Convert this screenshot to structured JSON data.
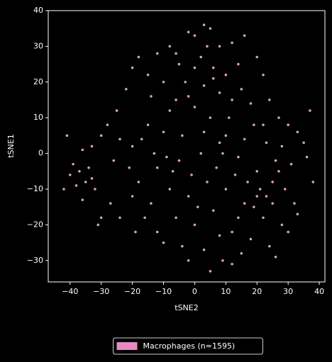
{
  "chart_data": {
    "type": "scatter",
    "xlabel": "tSNE2",
    "ylabel": "tSNE1",
    "xlim": [
      -47,
      41.8
    ],
    "ylim": [
      -36,
      40
    ],
    "xticks": [
      {
        "value": -40,
        "label": "−40"
      },
      {
        "value": -30,
        "label": "−30"
      },
      {
        "value": -20,
        "label": "−20"
      },
      {
        "value": -10,
        "label": "−10"
      },
      0,
      10,
      20,
      30,
      40
    ],
    "yticks": [
      {
        "value": -30,
        "label": "−30"
      },
      {
        "value": -20,
        "label": "−20"
      },
      {
        "value": -10,
        "label": "−10"
      },
      0,
      10,
      20,
      30,
      40
    ],
    "legend": "lower center",
    "x": [
      0,
      3,
      5,
      -2,
      8,
      -8,
      12,
      16,
      -12,
      -18,
      -20,
      20,
      22,
      -15,
      -5,
      2,
      6,
      10,
      14,
      -10,
      -3,
      3,
      8,
      15,
      18,
      24,
      27,
      30,
      33,
      -22,
      -25,
      -28,
      -30,
      -33,
      -26,
      -20,
      -15,
      -8,
      0,
      5,
      11,
      19,
      23,
      28,
      31,
      35,
      37,
      -18,
      -12,
      -5,
      2,
      8,
      14,
      20,
      25,
      29,
      32,
      28,
      22,
      16,
      10,
      4,
      -2,
      -8,
      -14,
      -20,
      -24,
      -19,
      -12,
      -6,
      0,
      6,
      12,
      18,
      24,
      15,
      9,
      3,
      -4,
      -10,
      -2,
      5,
      12,
      20,
      17,
      21,
      23,
      19,
      25,
      13,
      7,
      -1,
      -7,
      -13,
      -17,
      -10,
      -4,
      3,
      9,
      16,
      22,
      26,
      -2,
      6,
      12,
      -6,
      -14,
      0,
      4,
      -6,
      -30,
      -27,
      -32,
      -35,
      -37,
      -38,
      -36,
      -34,
      -40,
      -42,
      -39,
      -33,
      -41,
      -36,
      -31,
      33,
      30,
      26,
      38,
      36,
      -24,
      -21,
      -16,
      1,
      8,
      14,
      27,
      -9,
      10
    ],
    "series": [
      {
        "name": "Macrophages (n=1595)",
        "color": "#e78ac3",
        "values": [
          33,
          36,
          35,
          34,
          30,
          30,
          31,
          33,
          28,
          27,
          24,
          27,
          22,
          22,
          25,
          27,
          24,
          22,
          25,
          20,
          20,
          19,
          17,
          18,
          14,
          15,
          10,
          8,
          6,
          18,
          12,
          8,
          5,
          2,
          -2,
          2,
          8,
          12,
          13,
          10,
          10,
          8,
          3,
          2,
          -3,
          3,
          12,
          -8,
          -4,
          -2,
          0,
          3,
          -1,
          -5,
          -8,
          -10,
          -14,
          -20,
          -18,
          -14,
          -10,
          -8,
          -12,
          -10,
          -14,
          -12,
          -18,
          -22,
          -22,
          -18,
          -20,
          -16,
          -22,
          -24,
          -26,
          -28,
          -30,
          -27,
          -26,
          -25,
          -30,
          -33,
          -31,
          -12,
          -8,
          -10,
          -12,
          -15,
          -14,
          -6,
          -4,
          -6,
          -5,
          0,
          4,
          6,
          5,
          6,
          0,
          4,
          8,
          -2,
          16,
          21,
          15,
          15,
          16,
          24,
          30,
          28,
          -18,
          -14,
          -10,
          -8,
          -5,
          -9,
          -13,
          -4,
          -6,
          -10,
          -3,
          -7,
          5,
          1,
          -20,
          -17,
          -22,
          -29,
          -8,
          -1,
          4,
          -4,
          -18,
          -15,
          -23,
          -18,
          -5,
          -1,
          5
        ]
      }
    ]
  }
}
